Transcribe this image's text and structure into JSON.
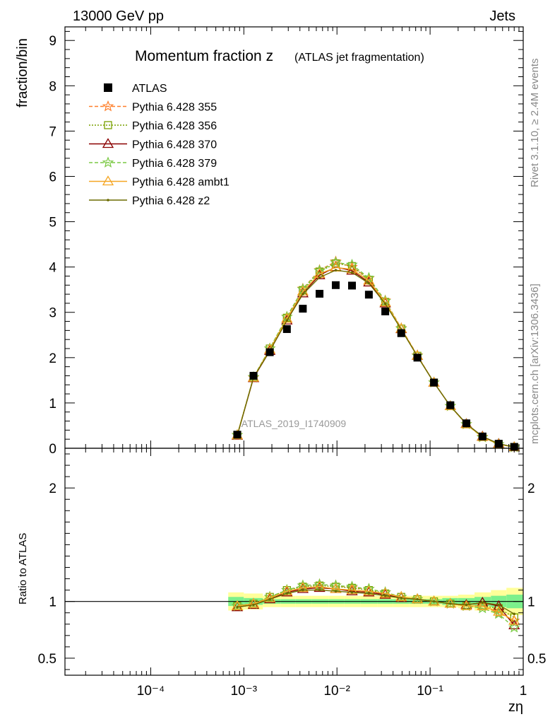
{
  "header": {
    "left": "13000 GeV pp",
    "right": "Jets"
  },
  "side_labels": {
    "rivet": "Rivet 3.1.10, ≥ 2.4M events",
    "mcplots": "mcplots.cern.ch [arXiv:1306.3436]"
  },
  "watermark": "ATLAS_2019_I1740909",
  "colors": {
    "atlas": "#000000",
    "p355": "#ff7f2a",
    "p356": "#7aa000",
    "p370": "#8b0000",
    "p379": "#7ac943",
    "ambt1": "#f5a623",
    "z2": "#6b6b00",
    "band_inner": "#7cf08c",
    "band_outer": "#ffff99"
  },
  "chart_data": [
    {
      "type": "line",
      "title_main": "Momentum fraction z",
      "title_sub": "(ATLAS jet fragmentation)",
      "ylabel": "fraction/bin",
      "xlabel": "zη",
      "xscale": "log",
      "xlim": [
        1.2e-05,
        1.0
      ],
      "ylim": [
        0,
        9.3
      ],
      "yticks": [
        0,
        1,
        2,
        3,
        4,
        5,
        6,
        7,
        8,
        9
      ],
      "xticks": [
        {
          "v": 0.0001,
          "label": "10⁻⁴"
        },
        {
          "v": 0.001,
          "label": "10⁻³"
        },
        {
          "v": 0.01,
          "label": "10⁻²"
        },
        {
          "v": 0.1,
          "label": "10⁻¹"
        },
        {
          "v": 1,
          "label": "1"
        }
      ],
      "x": [
        0.00085,
        0.00127,
        0.0019,
        0.0029,
        0.0043,
        0.0065,
        0.0097,
        0.0145,
        0.022,
        0.033,
        0.049,
        0.073,
        0.11,
        0.165,
        0.245,
        0.365,
        0.545,
        0.8
      ],
      "series": [
        {
          "name": "ATLAS",
          "marker": "square",
          "values": [
            0.3,
            1.6,
            2.12,
            2.63,
            3.08,
            3.41,
            3.6,
            3.59,
            3.39,
            3.02,
            2.54,
            2.0,
            1.45,
            0.95,
            0.55,
            0.26,
            0.1,
            0.03
          ]
        },
        {
          "name": "Pythia 6.428 355",
          "marker": "star",
          "dash": "5,3",
          "colorKey": "p355",
          "values": [
            0.29,
            1.56,
            2.2,
            2.9,
            3.52,
            3.93,
            4.12,
            4.0,
            3.75,
            3.26,
            2.65,
            2.05,
            1.45,
            0.93,
            0.53,
            0.25,
            0.09,
            0.025
          ]
        },
        {
          "name": "Pythia 6.428 356",
          "marker": "open-square",
          "dash": "2,2",
          "colorKey": "p356",
          "values": [
            0.29,
            1.56,
            2.2,
            2.88,
            3.49,
            3.9,
            4.08,
            4.02,
            3.72,
            3.23,
            2.64,
            2.04,
            1.45,
            0.93,
            0.53,
            0.25,
            0.09,
            0.026
          ]
        },
        {
          "name": "Pythia 6.428 370",
          "marker": "open-triangle",
          "dash": "",
          "colorKey": "p370",
          "values": [
            0.28,
            1.55,
            2.15,
            2.82,
            3.42,
            3.82,
            4.0,
            3.92,
            3.66,
            3.2,
            2.63,
            2.04,
            1.45,
            0.93,
            0.54,
            0.26,
            0.1,
            0.024
          ]
        },
        {
          "name": "Pythia 6.428 379",
          "marker": "star",
          "dash": "5,3",
          "colorKey": "p379",
          "values": [
            0.29,
            1.57,
            2.2,
            2.9,
            3.51,
            3.92,
            4.1,
            4.05,
            3.76,
            3.25,
            2.64,
            2.04,
            1.45,
            0.93,
            0.53,
            0.24,
            0.09,
            0.023
          ]
        },
        {
          "name": "Pythia 6.428 ambt1",
          "marker": "open-triangle",
          "dash": "",
          "colorKey": "ambt1",
          "values": [
            0.29,
            1.56,
            2.18,
            2.86,
            3.46,
            3.85,
            3.99,
            3.95,
            3.7,
            3.22,
            2.64,
            2.04,
            1.45,
            0.93,
            0.53,
            0.25,
            0.09,
            0.025
          ]
        },
        {
          "name": "Pythia 6.428 z2",
          "marker": "dot",
          "dash": "",
          "colorKey": "z2",
          "values": [
            0.28,
            1.56,
            2.15,
            2.82,
            3.4,
            3.77,
            3.93,
            3.88,
            3.64,
            3.19,
            2.62,
            2.03,
            1.45,
            0.93,
            0.54,
            0.26,
            0.1,
            0.027
          ]
        }
      ]
    },
    {
      "type": "line",
      "ylabel": "Ratio to ATLAS",
      "xscale": "log",
      "ylim": [
        0.35,
        2.35
      ],
      "yticks": [
        {
          "v": 0.5,
          "label": "0.5"
        },
        {
          "v": 1,
          "label": "1"
        },
        {
          "v": 2,
          "label": "2"
        }
      ],
      "x": [
        0.00085,
        0.00127,
        0.0019,
        0.0029,
        0.0043,
        0.0065,
        0.0097,
        0.0145,
        0.022,
        0.033,
        0.049,
        0.073,
        0.11,
        0.165,
        0.245,
        0.365,
        0.545,
        0.8
      ],
      "band": {
        "edges": [
          0.00068,
          0.001,
          0.0016,
          0.0025,
          0.0036,
          0.0054,
          0.0081,
          0.012,
          0.018,
          0.027,
          0.04,
          0.06,
          0.09,
          0.135,
          0.2,
          0.3,
          0.45,
          0.66,
          1.0
        ],
        "inner": [
          0.04,
          0.03,
          0.02,
          0.02,
          0.02,
          0.02,
          0.02,
          0.02,
          0.02,
          0.02,
          0.02,
          0.02,
          0.02,
          0.03,
          0.03,
          0.04,
          0.05,
          0.06
        ],
        "outer": [
          0.08,
          0.07,
          0.05,
          0.05,
          0.05,
          0.05,
          0.05,
          0.05,
          0.05,
          0.05,
          0.05,
          0.05,
          0.05,
          0.05,
          0.06,
          0.08,
          0.1,
          0.12
        ]
      },
      "series": [
        {
          "name": "Pythia 6.428 355",
          "colorKey": "p355",
          "marker": "star",
          "dash": "5,3",
          "values": [
            0.96,
            0.98,
            1.04,
            1.1,
            1.14,
            1.15,
            1.14,
            1.12,
            1.11,
            1.08,
            1.04,
            1.02,
            1.0,
            0.98,
            0.96,
            0.96,
            0.9,
            0.83
          ]
        },
        {
          "name": "Pythia 6.428 356",
          "colorKey": "p356",
          "marker": "open-square",
          "dash": "2,2",
          "values": [
            0.96,
            0.98,
            1.04,
            1.1,
            1.13,
            1.14,
            1.13,
            1.12,
            1.1,
            1.07,
            1.04,
            1.02,
            1.0,
            0.98,
            0.96,
            0.96,
            0.94,
            0.86
          ]
        },
        {
          "name": "Pythia 6.428 370",
          "colorKey": "p370",
          "marker": "open-triangle",
          "dash": "",
          "values": [
            0.95,
            0.97,
            1.02,
            1.08,
            1.11,
            1.12,
            1.11,
            1.09,
            1.08,
            1.06,
            1.03,
            1.02,
            1.0,
            0.98,
            0.97,
            0.99,
            0.96,
            0.79
          ]
        },
        {
          "name": "Pythia 6.428 379",
          "colorKey": "p379",
          "marker": "star",
          "dash": "5,3",
          "values": [
            0.96,
            0.98,
            1.04,
            1.1,
            1.14,
            1.15,
            1.14,
            1.13,
            1.11,
            1.08,
            1.04,
            1.02,
            1.0,
            0.98,
            0.96,
            0.94,
            0.89,
            0.77
          ]
        },
        {
          "name": "Pythia 6.428 ambt1",
          "colorKey": "ambt1",
          "marker": "open-triangle",
          "dash": "",
          "values": [
            0.96,
            0.98,
            1.03,
            1.09,
            1.12,
            1.13,
            1.11,
            1.1,
            1.09,
            1.07,
            1.04,
            1.02,
            1.0,
            0.98,
            0.96,
            0.96,
            0.91,
            0.83
          ]
        },
        {
          "name": "Pythia 6.428 z2",
          "colorKey": "z2",
          "marker": "dot",
          "dash": "",
          "values": [
            0.95,
            0.97,
            1.02,
            1.07,
            1.1,
            1.1,
            1.09,
            1.08,
            1.07,
            1.05,
            1.03,
            1.02,
            1.0,
            0.98,
            0.97,
            0.99,
            0.97,
            0.89
          ]
        }
      ]
    }
  ]
}
